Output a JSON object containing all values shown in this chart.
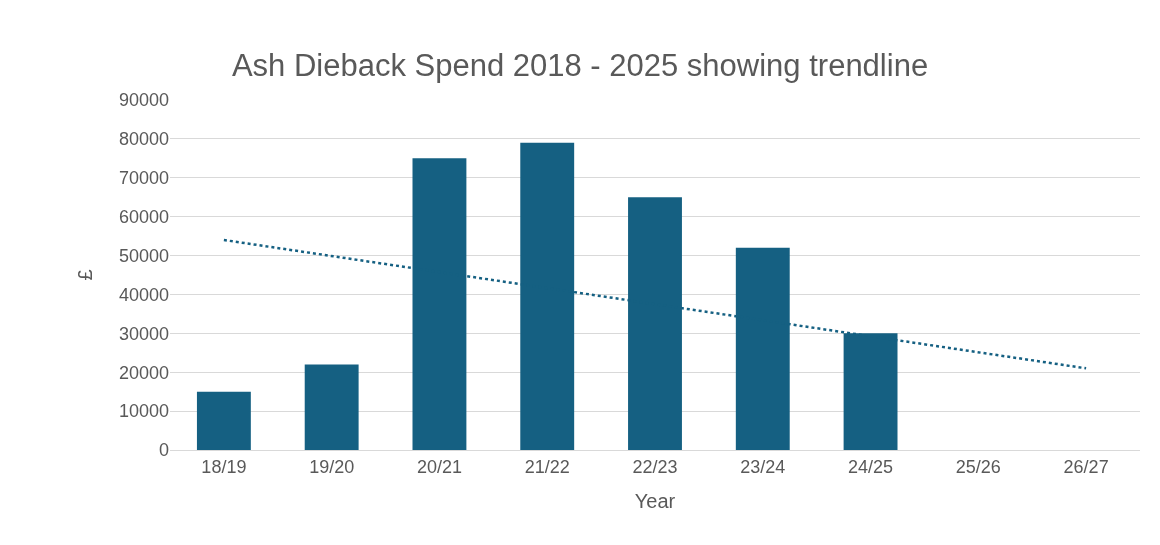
{
  "chart_data": {
    "type": "bar",
    "title": "Ash Dieback Spend 2018 - 2025 showing trendline",
    "xlabel": "Year",
    "ylabel": "£",
    "categories": [
      "18/19",
      "19/20",
      "20/21",
      "21/22",
      "22/23",
      "23/24",
      "24/25",
      "25/26",
      "26/27"
    ],
    "series": [
      {
        "color": "#156082",
        "values": [
          15000,
          22000,
          75000,
          79000,
          65000,
          52000,
          30000,
          null,
          null
        ]
      },
      {
        "type": "line",
        "color": "#156082",
        "line_style": "dotted",
        "marker": "none",
        "x": [
          "18/19",
          "26/27"
        ],
        "values": [
          54000,
          21000
        ]
      }
    ],
    "ylim": [
      0,
      90000
    ],
    "yticks": [
      0,
      10000,
      20000,
      30000,
      40000,
      50000,
      60000,
      70000,
      80000,
      90000
    ],
    "grid": "y"
  }
}
